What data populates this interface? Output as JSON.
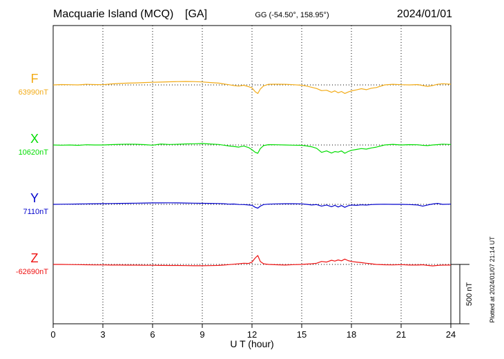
{
  "chart_data": {
    "type": "line",
    "title": "Macquarie Island (MCQ)",
    "code": "[GA]",
    "coords": "GG (-54.50°, 158.95°)",
    "date": "2024/01/01",
    "xlabel": "U T (hour)",
    "xlim": [
      0,
      24
    ],
    "xticks": [
      "0",
      "3",
      "6",
      "9",
      "12",
      "15",
      "18",
      "21",
      "24"
    ],
    "scale_label": "500 nT",
    "scale_nT": 500,
    "plotted": "Plotted at 2024/01/07 21:14 UT",
    "series": [
      {
        "name": "F",
        "baseline_label": "63990nT",
        "color": "#f2ab17",
        "x": [
          0,
          0.5,
          1,
          1.5,
          2,
          2.5,
          3,
          3.5,
          4,
          4.5,
          5,
          5.5,
          6,
          6.5,
          7,
          7.5,
          8,
          8.5,
          9,
          9.5,
          10,
          10.3,
          10.6,
          10.9,
          11.2,
          11.5,
          11.8,
          12.0,
          12.2,
          12.35,
          12.5,
          12.7,
          13,
          13.5,
          14,
          14.5,
          15,
          15.3,
          15.6,
          15.9,
          16.2,
          16.5,
          16.8,
          17.0,
          17.2,
          17.4,
          17.6,
          17.8,
          18.0,
          18.3,
          18.6,
          18.9,
          19.2,
          19.5,
          20,
          20.5,
          21,
          21.5,
          22,
          22.3,
          22.6,
          22.9,
          23.2,
          23.5,
          24
        ],
        "values": [
          0,
          3,
          2,
          0,
          5,
          3,
          2,
          8,
          12,
          15,
          17,
          20,
          22,
          24,
          26,
          28,
          29,
          28,
          25,
          20,
          15,
          8,
          2,
          -5,
          -10,
          -3,
          -15,
          -25,
          -58,
          -72,
          -35,
          -8,
          5,
          6,
          5,
          2,
          -3,
          -10,
          -20,
          -30,
          -48,
          -45,
          -62,
          -50,
          -66,
          -55,
          -72,
          -60,
          -50,
          -42,
          -32,
          -40,
          -28,
          -22,
          0,
          5,
          2,
          0,
          3,
          -5,
          -12,
          -5,
          5,
          10,
          6
        ]
      },
      {
        "name": "X",
        "baseline_label": "10620nT",
        "color": "#00dd00",
        "x": [
          0,
          0.5,
          1,
          1.5,
          2,
          2.5,
          3,
          3.5,
          4,
          4.5,
          5,
          5.5,
          6,
          6.5,
          7,
          7.5,
          8,
          8.5,
          9,
          9.5,
          10,
          10.3,
          10.6,
          10.9,
          11.2,
          11.5,
          11.8,
          12.0,
          12.2,
          12.35,
          12.5,
          12.7,
          13,
          13.5,
          14,
          14.5,
          15,
          15.3,
          15.6,
          15.9,
          16.2,
          16.5,
          16.8,
          17.0,
          17.2,
          17.4,
          17.6,
          17.8,
          18.0,
          18.3,
          18.6,
          18.9,
          19.2,
          19.5,
          20,
          20.5,
          21,
          21.5,
          22,
          22.3,
          22.6,
          22.9,
          23.2,
          23.5,
          24
        ],
        "values": [
          0,
          -2,
          0,
          -3,
          2,
          0,
          0,
          3,
          5,
          7,
          6,
          3,
          -2,
          8,
          4,
          6,
          9,
          10,
          12,
          8,
          4,
          -2,
          -8,
          -12,
          -18,
          -8,
          -22,
          -40,
          -62,
          -70,
          -30,
          -5,
          3,
          2,
          0,
          -2,
          -3,
          -8,
          -15,
          -28,
          -62,
          -50,
          -68,
          -55,
          -60,
          -50,
          -70,
          -55,
          -45,
          -38,
          -30,
          -35,
          -25,
          -18,
          0,
          5,
          0,
          3,
          2,
          -3,
          -5,
          0,
          3,
          7,
          4
        ]
      },
      {
        "name": "Y",
        "baseline_label": "7110nT",
        "color": "#0000cc",
        "x": [
          0,
          0.5,
          1,
          1.5,
          2,
          2.5,
          3,
          3.5,
          4,
          4.5,
          5,
          5.5,
          6,
          6.5,
          7,
          7.5,
          8,
          8.5,
          9,
          9.5,
          10,
          10.3,
          10.6,
          10.9,
          11.2,
          11.5,
          11.8,
          12.0,
          12.2,
          12.35,
          12.5,
          12.7,
          13,
          13.5,
          14,
          14.5,
          15,
          15.3,
          15.6,
          15.9,
          16.2,
          16.5,
          16.8,
          17.0,
          17.2,
          17.4,
          17.6,
          17.8,
          18.0,
          18.3,
          18.6,
          18.9,
          19.2,
          19.5,
          20,
          20.5,
          21,
          21.5,
          22,
          22.3,
          22.6,
          22.9,
          23.2,
          23.5,
          24
        ],
        "values": [
          0,
          1,
          2,
          3,
          4,
          5,
          6,
          7,
          8,
          9,
          10,
          11,
          12,
          12,
          13,
          12,
          11,
          10,
          9,
          8,
          7,
          5,
          2,
          3,
          -1,
          -2,
          -5,
          -8,
          -25,
          -32,
          -15,
          -2,
          2,
          4,
          5,
          5,
          4,
          0,
          -5,
          -2,
          -15,
          -5,
          -20,
          -8,
          -22,
          -10,
          -25,
          -12,
          -5,
          -8,
          -4,
          -6,
          -2,
          0,
          1,
          0,
          0,
          -2,
          -5,
          -15,
          -5,
          3,
          8,
          0,
          2
        ]
      },
      {
        "name": "Z",
        "baseline_label": "-62690nT",
        "color": "#ee1111",
        "x": [
          0,
          0.5,
          1,
          1.5,
          2,
          2.5,
          3,
          3.5,
          4,
          4.5,
          5,
          5.5,
          6,
          6.5,
          7,
          7.5,
          8,
          8.5,
          9,
          9.5,
          10,
          10.3,
          10.6,
          10.9,
          11.2,
          11.5,
          11.8,
          12.0,
          12.2,
          12.35,
          12.5,
          12.7,
          13,
          13.5,
          14,
          14.5,
          15,
          15.3,
          15.6,
          15.9,
          16.2,
          16.5,
          16.8,
          17.0,
          17.2,
          17.4,
          17.6,
          17.8,
          18.0,
          18.3,
          18.6,
          18.9,
          19.2,
          19.5,
          20,
          20.5,
          21,
          21.5,
          22,
          22.3,
          22.6,
          22.9,
          23.2,
          23.5,
          24
        ],
        "values": [
          0,
          0,
          -1,
          -2,
          -3,
          -4,
          -4,
          -5,
          -5,
          -6,
          -6,
          -7,
          -7,
          -8,
          -9,
          -9,
          -10,
          -11,
          -11,
          -10,
          -8,
          -5,
          -2,
          2,
          5,
          10,
          8,
          20,
          55,
          75,
          25,
          5,
          0,
          -3,
          -5,
          -2,
          0,
          3,
          5,
          10,
          25,
          20,
          35,
          28,
          38,
          30,
          45,
          32,
          25,
          20,
          15,
          10,
          5,
          0,
          -3,
          -4,
          -2,
          -5,
          -5,
          -3,
          -8,
          -12,
          -8,
          -6,
          -5
        ]
      }
    ]
  }
}
